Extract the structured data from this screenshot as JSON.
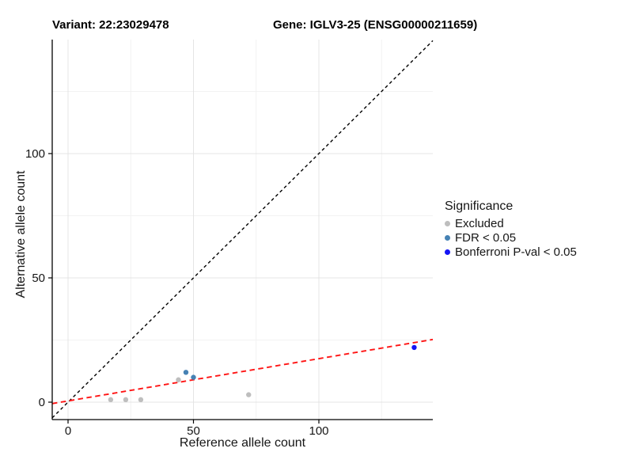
{
  "header": {
    "variant_title": "Variant: 22:23029478",
    "gene_title": "Gene: IGLV3-25 (ENSG00000211659)"
  },
  "legend": {
    "title": "Significance",
    "items": [
      {
        "label": "Excluded",
        "color": "#BEBEBE"
      },
      {
        "label": "FDR < 0.05",
        "color": "#4682B4"
      },
      {
        "label": "Bonferroni P-val < 0.05",
        "color": "#1414F5"
      }
    ]
  },
  "chart_data": {
    "type": "scatter",
    "title": "Variant: 22:23029478 — Gene: IGLV3-25 (ENSG00000211659)",
    "xlabel": "Reference allele count",
    "ylabel": "Alternative allele count",
    "xlim": [
      -7,
      146
    ],
    "ylim": [
      -7,
      146
    ],
    "x_ticks": [
      0,
      50,
      100
    ],
    "x_minor_ticks": [
      25,
      75,
      125
    ],
    "y_ticks": [
      0,
      50,
      100
    ],
    "y_minor_ticks": [
      25,
      75,
      125
    ],
    "grid": true,
    "legend_position": "right",
    "series": [
      {
        "name": "Excluded",
        "color": "#BEBEBE",
        "points": [
          [
            17,
            1
          ],
          [
            23,
            1
          ],
          [
            29,
            1
          ],
          [
            44,
            9
          ],
          [
            72,
            3
          ]
        ]
      },
      {
        "name": "FDR < 0.05",
        "color": "#4682B4",
        "points": [
          [
            47,
            12
          ],
          [
            50,
            10
          ]
        ]
      },
      {
        "name": "Bonferroni P-val < 0.05",
        "color": "#1414F5",
        "points": [
          [
            138,
            22
          ]
        ]
      }
    ],
    "lines": [
      {
        "name": "identity-line",
        "color": "#000000",
        "slope": 1,
        "intercept": 0,
        "dash": "4,3.5",
        "width": 1.4
      },
      {
        "name": "regression-line",
        "color": "#FF1414",
        "slope": 0.17,
        "intercept": 0.5,
        "dash": "6.5,4.5",
        "width": 1.9
      }
    ],
    "colors": {
      "grid_major": "#E4E4E4",
      "grid_minor": "#F2F2F2",
      "axis": "#000000",
      "tick_text": "#161616"
    }
  }
}
